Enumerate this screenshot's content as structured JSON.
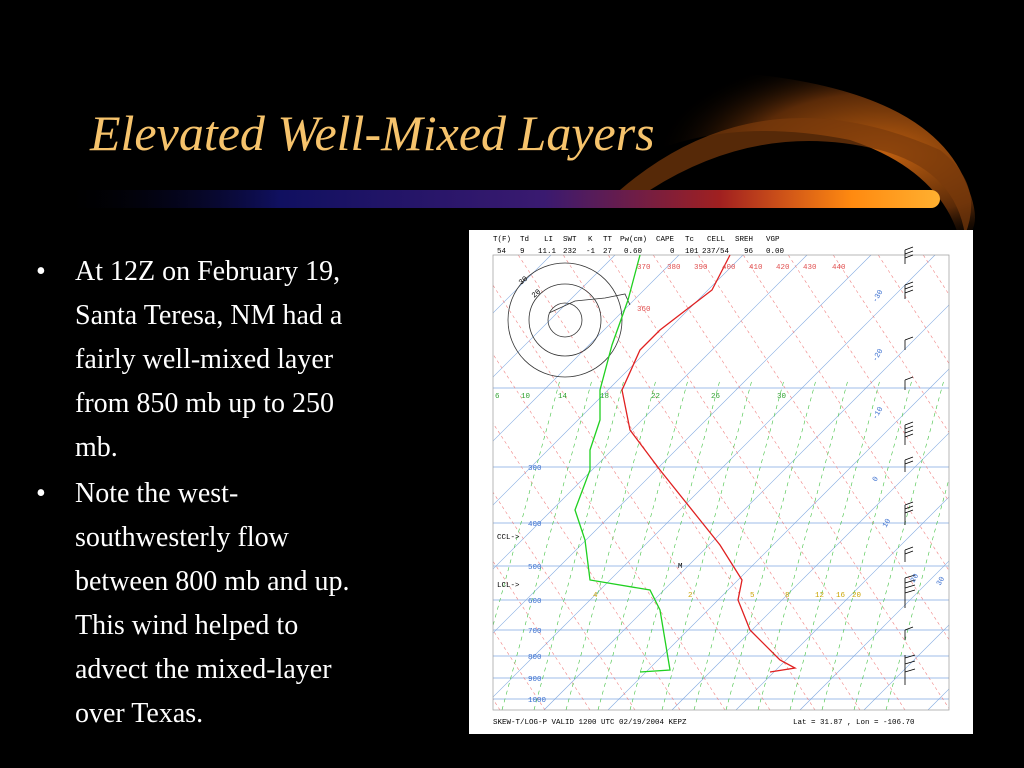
{
  "title": "Elevated Well-Mixed Layers",
  "bullets": [
    [
      "At 12Z on February 19,",
      "Santa Teresa, NM had a",
      "fairly well-mixed layer",
      "from 850 mb up to 250",
      "mb."
    ],
    [
      "Note the west-",
      "southwesterly flow",
      "between 800 mb and up.",
      "This wind helped to",
      "advect the mixed-layer",
      "over Texas."
    ]
  ],
  "skewt": {
    "header": [
      "T(F)",
      "Td",
      "LI",
      "SWT",
      "K",
      "TT",
      "Pw(cm)",
      "CAPE",
      "Tc",
      "CELL",
      "SREH",
      "VGP"
    ],
    "header_values": [
      "54",
      "9",
      "11.1",
      "232",
      "-1",
      "27",
      "0.60",
      "0",
      "101",
      "237/54",
      "96",
      "0.00"
    ],
    "pressure_labels": [
      "300",
      "400",
      "500",
      "600",
      "700",
      "800",
      "900",
      "1000"
    ],
    "parcel_labels": [
      "CCL->",
      "LCL->"
    ],
    "mixing_labels": [
      "6",
      "10",
      "14",
      "18",
      "22",
      "26",
      "30"
    ],
    "lower_mixing_labels": [
      "4",
      "2",
      "5",
      "8",
      "12",
      "16",
      "20"
    ],
    "theta_labels": [
      "370",
      "380",
      "390",
      "400",
      "410",
      "420",
      "430",
      "440",
      "360"
    ],
    "isotherm_labels": [
      "-30",
      "-20",
      "-10",
      "0",
      "10",
      "20",
      "30"
    ],
    "hodograph_labels": [
      "30",
      "20"
    ],
    "marker": "M",
    "footer_left": "SKEW-T/LOG-P VALID 1200 UTC 02/19/2004   KEPZ",
    "footer_right": "Lat =    31.87 , Lon =  -106.70"
  }
}
